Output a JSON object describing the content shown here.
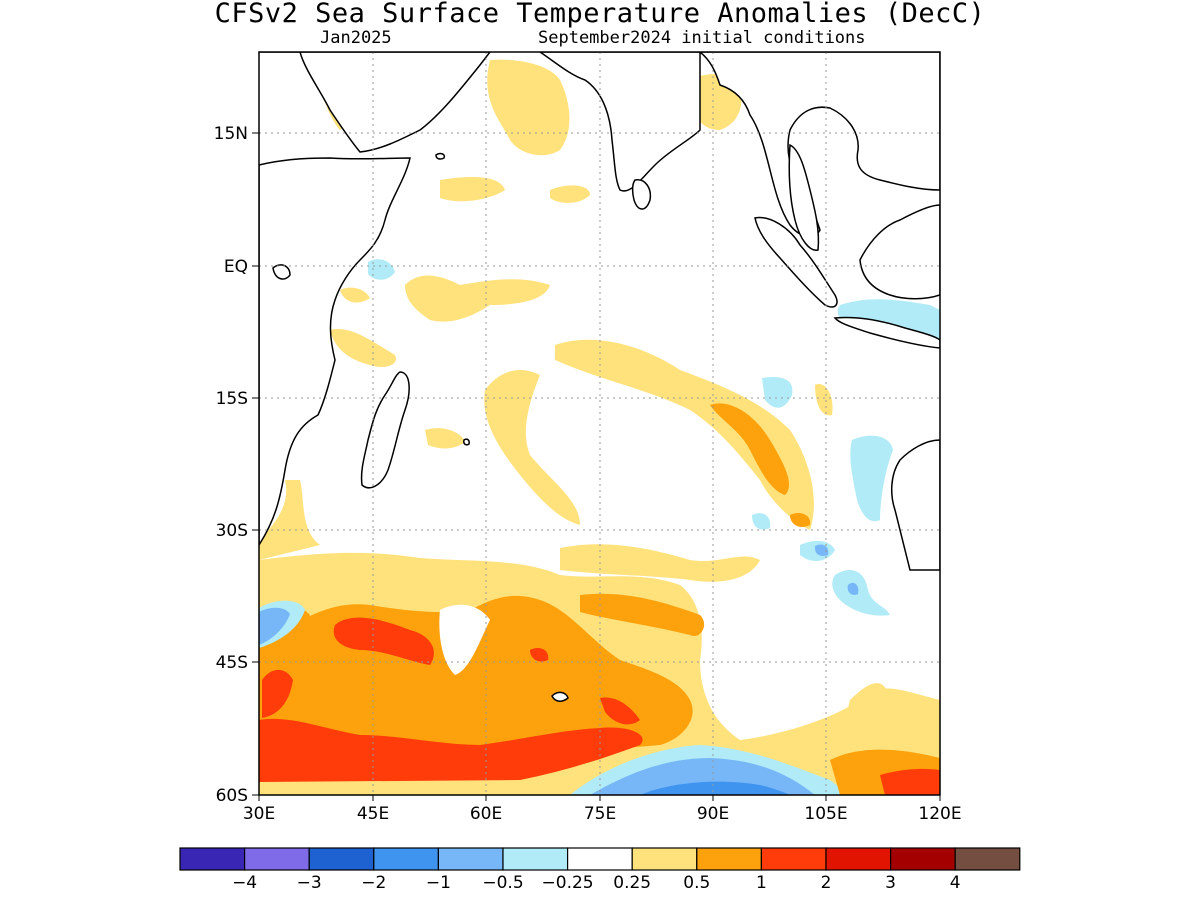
{
  "title": "CFSv2 Sea Surface Temperature Anomalies (DecC)",
  "subtitle_left": "Jan2025",
  "subtitle_right": "September2024 initial conditions",
  "lat_labels": [
    "15N",
    "EQ",
    "15S",
    "30S",
    "45S",
    "60S"
  ],
  "lon_labels": [
    "30E",
    "45E",
    "60E",
    "75E",
    "90E",
    "105E",
    "120E"
  ],
  "colorbar": {
    "colors": [
      "#3a26b4",
      "#7f6be8",
      "#1e62d2",
      "#3f94f0",
      "#77b7f7",
      "#b1ebf8",
      "#ffffff",
      "#ffe27b",
      "#fda10c",
      "#ff3c0a",
      "#e11402",
      "#a40000",
      "#754e42"
    ],
    "labels": [
      "−4",
      "−3",
      "−2",
      "−1",
      "−0.5",
      "−0.25",
      "0.25",
      "0.5",
      "1",
      "2",
      "3",
      "4"
    ]
  },
  "map_colors": {
    "land": "#ffffff",
    "coast": "#000000",
    "grid": "#999999"
  }
}
